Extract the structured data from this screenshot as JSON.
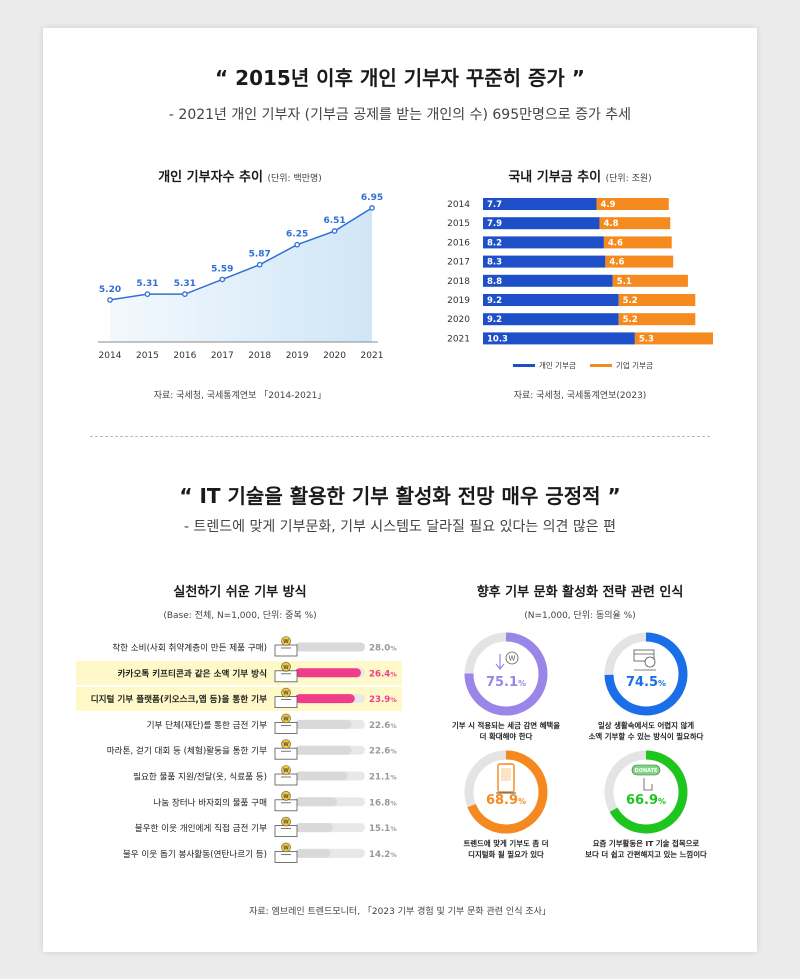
{
  "section1": {
    "headline": "“ 2015년 이후 개인 기부자 꾸준히 증가 ”",
    "subline": "- 2021년 개인 기부자 (기부금 공제를 받는 개인의 수) 695만명으로 증가 추세"
  },
  "section2": {
    "headline": "“ IT 기술을 활용한 기부 활성화 전망 매우 긍정적 ”",
    "subline": "- 트렌드에 맞게 기부문화, 기부 시스템도 달라질 필요 있다는 의견 많은 편",
    "footnote": "자료: 엠브레인 트렌드모니터, 「2023 기부 경험 및 기부 문화 관련 인식 조사」"
  },
  "chart_data": [
    {
      "type": "area",
      "title": "개인 기부자수 추이",
      "unit": "(단위: 백만명)",
      "x": [
        "2014",
        "2015",
        "2016",
        "2017",
        "2018",
        "2019",
        "2020",
        "2021"
      ],
      "values": [
        5.2,
        5.31,
        5.31,
        5.59,
        5.87,
        6.25,
        6.51,
        6.95
      ],
      "labels": [
        "5.20",
        "5.31",
        "5.31",
        "5.59",
        "5.87",
        "6.25",
        "6.51",
        "6.95"
      ],
      "ylim": [
        4.4,
        7.1
      ],
      "color": "#2f6fd6",
      "fill": "#cfe6f7",
      "source": "자료: 국세청, 국세통계연보 「2014-2021」"
    },
    {
      "type": "bar",
      "orientation": "horizontal-stacked",
      "title": "국내 기부금 추이",
      "unit": "(단위: 조원)",
      "categories": [
        "2014",
        "2015",
        "2016",
        "2017",
        "2018",
        "2019",
        "2020",
        "2021"
      ],
      "series": [
        {
          "name": "개인 기부금",
          "values": [
            7.7,
            7.9,
            8.2,
            8.3,
            8.8,
            9.2,
            9.2,
            10.3
          ],
          "color": "#1e4fc8"
        },
        {
          "name": "기업 기부금",
          "values": [
            4.9,
            4.8,
            4.6,
            4.6,
            5.1,
            5.2,
            5.2,
            5.3
          ],
          "color": "#f58a1f"
        }
      ],
      "labels": [
        [
          "7.7",
          "7.9",
          "8.2",
          "8.3",
          "8.8",
          "9.2",
          "9.2",
          "10.3"
        ],
        [
          "4.9",
          "4.8",
          "4.6",
          "4.6",
          "5.1",
          "5.2",
          "5.2",
          "5.3"
        ]
      ],
      "xlim": [
        0,
        15.6
      ],
      "source": "자료: 국세청, 국세통계연보(2023)"
    },
    {
      "type": "bar",
      "orientation": "horizontal",
      "title": "실천하기 쉬운 기부 방식",
      "subtitle": "(Base: 전체, N=1,000, 단위: 중복 %)",
      "categories": [
        "착한 소비(사회 취약계층이 만든 제품 구매)",
        "카카오톡 키프티콘과 같은 소액 기부 방식",
        "디지털 기부 플랫폼(키오스크,앱 등)을 통한 기부",
        "기부 단체(재단)를 통한 금전 기부",
        "마라톤, 걷기 대회 등 (체험)활동을 통한 기부",
        "필요한 물품 지원/전달(옷, 식료품 등)",
        "나눔 장터나 바자회의 물품 구매",
        "불우한 이웃 개인에게 직접 금전 기부",
        "불우 이웃 돕기 봉사활동(연탄나르기 등)"
      ],
      "values": [
        28.0,
        26.4,
        23.9,
        22.6,
        22.6,
        21.1,
        16.8,
        15.1,
        14.2
      ],
      "value_labels": [
        "28.0",
        "26.4",
        "23.9",
        "22.6",
        "22.6",
        "21.1",
        "16.8",
        "15.1",
        "14.2"
      ],
      "unit_suffix": "%",
      "highlighted": [
        false,
        true,
        true,
        false,
        false,
        false,
        false,
        false,
        false
      ],
      "xlim": [
        0,
        28
      ],
      "colors": {
        "normal": "#d9d9d9",
        "highlight": "#ef3d8a",
        "highlight_text": "#ef3d8a",
        "row_bg": "#fff8c9"
      },
      "icon": "donation-box-icon",
      "icon_letter": "W"
    },
    {
      "type": "pie",
      "style": "donut",
      "title": "향후 기부 문화 활성화 전략 관련 인식",
      "subtitle": "(N=1,000, 단위: 동의율 %)",
      "items": [
        {
          "value": 75.1,
          "value_text": "75.1",
          "color": "#9a86e8",
          "icon": "coin-drop-icon",
          "caption": [
            "기부 시 적용되는 세금 감면 혜택을",
            "더 확대해야 한다"
          ]
        },
        {
          "value": 74.5,
          "value_text": "74.5",
          "color": "#1a6fe8",
          "icon": "card-payment-icon",
          "caption": [
            "일상 생활속에서도 어렵지 않게",
            "소액 기부할 수 있는 방식이 필요하다"
          ]
        },
        {
          "value": 68.9,
          "value_text": "68.9",
          "color": "#f5891f",
          "icon": "kiosk-icon",
          "caption": [
            "트렌드에 맞게 기부도 좀 더",
            "디지털화 될 필요가 있다"
          ]
        },
        {
          "value": 66.9,
          "value_text": "66.9",
          "color": "#1ec51e",
          "icon": "donate-tap-icon",
          "icon_text": "DONATE",
          "caption": [
            "요즘 기부활동은 IT 기술 접목으로",
            "보다 더 쉽고 간편해지고 있는 느낌이다"
          ]
        }
      ],
      "unit_suffix": "%",
      "track_color": "#e4e4e4"
    }
  ]
}
